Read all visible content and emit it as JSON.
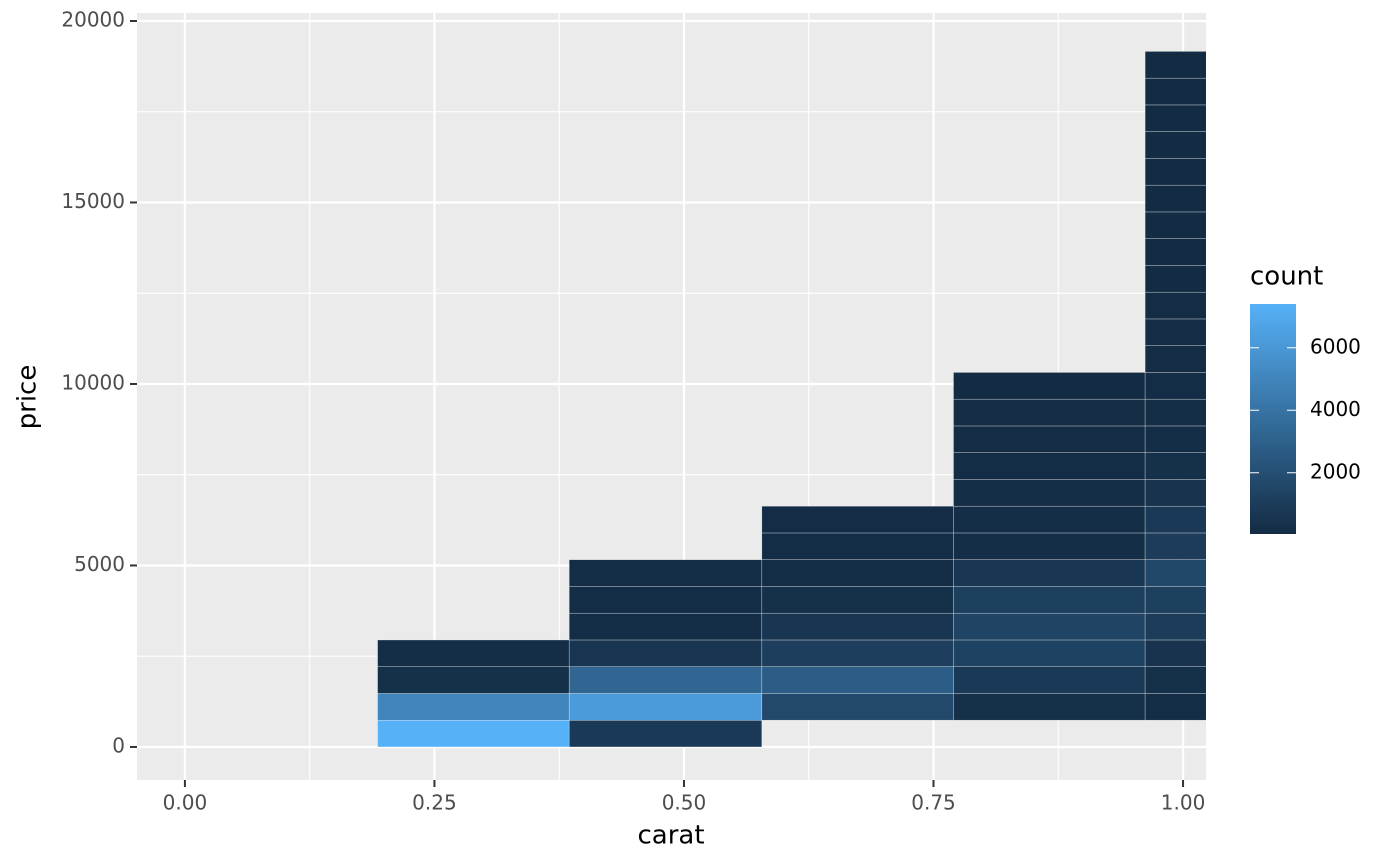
{
  "chart_data": {
    "type": "heatmap",
    "x_label": "carat",
    "y_label": "price",
    "legend_title": "count",
    "x_edges": [
      0.193,
      0.385,
      0.578,
      0.77,
      0.962,
      1.154
    ],
    "y_edges": [
      0,
      737,
      1474,
      2211,
      2948,
      3685,
      4422,
      5159,
      5896,
      6633,
      7370,
      8107,
      8844,
      9581,
      10318,
      11055,
      11792,
      12529,
      13266,
      14003,
      14740,
      15477,
      16214,
      16951,
      17688,
      18425,
      19162
    ],
    "counts": [
      [
        7400,
        5000,
        300,
        200
      ],
      [
        800,
        6200,
        3300,
        600,
        150,
        150,
        150
      ],
      [
        null,
        1700,
        2800,
        1100,
        600,
        300,
        150,
        150,
        120
      ],
      [
        null,
        300,
        800,
        1300,
        1400,
        1200,
        700,
        200,
        200,
        150,
        150,
        100,
        100,
        80
      ],
      [
        null,
        150,
        300,
        500,
        1000,
        1200,
        1600,
        1000,
        800,
        500,
        300,
        200,
        180,
        160,
        140,
        120,
        100,
        90,
        80,
        70,
        60,
        55,
        50,
        45,
        42,
        40
      ]
    ],
    "color_low": "#132B43",
    "color_high": "#56B1F7",
    "colorlim": [
      40,
      7400
    ],
    "colorticks": [
      2000,
      4000,
      6000
    ],
    "xlim": [
      -0.048,
      1.023
    ],
    "ylim": [
      -910,
      20220
    ],
    "xticks": [
      {
        "value": 0,
        "label": "0.00"
      },
      {
        "value": 0.25,
        "label": "0.25"
      },
      {
        "value": 0.5,
        "label": "0.50"
      },
      {
        "value": 0.75,
        "label": "0.75"
      },
      {
        "value": 1,
        "label": "1.00"
      }
    ],
    "yticks": [
      0,
      5000,
      10000,
      15000,
      20000
    ],
    "minor_xticks": [
      0.125,
      0.375,
      0.625,
      0.875
    ],
    "minor_yticks": [
      2500,
      7500,
      12500,
      17500
    ],
    "grid": true
  }
}
